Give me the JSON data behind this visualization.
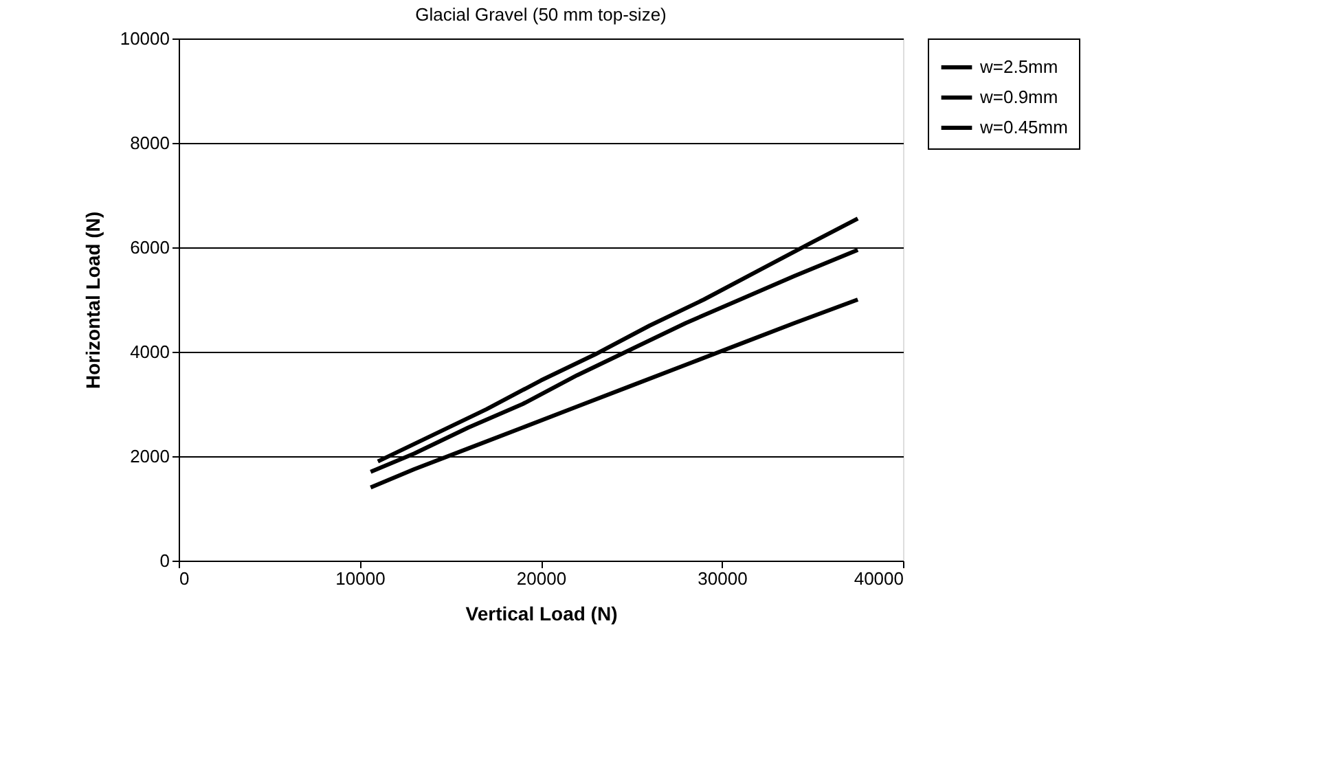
{
  "chart_data": {
    "type": "line",
    "title": "Glacial Gravel (50 mm top-size)",
    "xlabel": "Vertical Load (N)",
    "ylabel": "Horizontal Load (N)",
    "xlim": [
      0,
      40000
    ],
    "xticks": [
      0,
      10000,
      20000,
      30000,
      40000
    ],
    "ylim": [
      0,
      10000
    ],
    "yticks": [
      0,
      2000,
      4000,
      6000,
      8000,
      10000
    ],
    "grid": "y",
    "legend": "right",
    "marker": "none",
    "line_style": "solid",
    "series": [
      {
        "name": "w=2.5mm",
        "color": "#000000",
        "x": [
          11000,
          14000,
          17000,
          20000,
          23000,
          26000,
          29000,
          32000,
          35000,
          37500
        ],
        "values": [
          1900,
          2400,
          2900,
          3450,
          3950,
          4500,
          5000,
          5550,
          6100,
          6550
        ]
      },
      {
        "name": "w=0.9mm",
        "color": "#000000",
        "x": [
          10600,
          13000,
          16000,
          19000,
          22000,
          25000,
          28000,
          31000,
          34000,
          37500
        ],
        "values": [
          1700,
          2050,
          2550,
          3000,
          3550,
          4050,
          4550,
          5000,
          5450,
          5950
        ]
      },
      {
        "name": "w=0.45mm",
        "color": "#000000",
        "x": [
          10600,
          13000,
          16000,
          19000,
          22000,
          25000,
          28000,
          31000,
          34000,
          37500
        ],
        "values": [
          1400,
          1750,
          2150,
          2550,
          2950,
          3350,
          3750,
          4150,
          4550,
          5000
        ]
      }
    ]
  }
}
